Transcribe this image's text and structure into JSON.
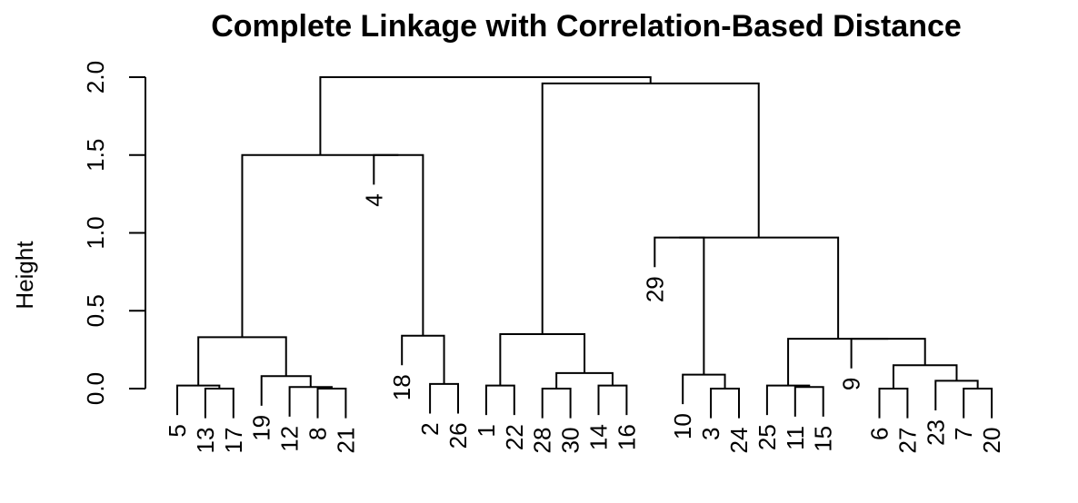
{
  "chart_data": {
    "type": "dendrogram",
    "title": "Complete Linkage with Correlation-Based Distance",
    "ylabel": "Height",
    "xlabel": "",
    "ylim": [
      0,
      2.0
    ],
    "yticks": [
      0.0,
      0.5,
      1.0,
      1.5,
      2.0
    ],
    "ytick_labels": [
      "0.0",
      "0.5",
      "1.0",
      "1.5",
      "2.0"
    ],
    "grid": false,
    "leaves": [
      "5",
      "13",
      "17",
      "19",
      "12",
      "8",
      "21",
      "4",
      "18",
      "2",
      "26",
      "1",
      "22",
      "28",
      "30",
      "14",
      "16",
      "29",
      "10",
      "3",
      "24",
      "25",
      "11",
      "15",
      "9",
      "6",
      "27",
      "23",
      "7",
      "20"
    ],
    "merges": [
      {
        "left": "13",
        "right": "17",
        "height": 0.0
      },
      {
        "left": "8",
        "right": "21",
        "height": 0.0
      },
      {
        "left": "2",
        "right": "26",
        "height": 0.03
      },
      {
        "left": "1",
        "right": "22",
        "height": 0.02
      },
      {
        "left": "28",
        "right": "30",
        "height": 0.0
      },
      {
        "left": "14",
        "right": "16",
        "height": 0.02
      },
      {
        "left": "3",
        "right": "24",
        "height": 0.0
      },
      {
        "left": "11",
        "right": "15",
        "height": 0.01
      },
      {
        "left": "7",
        "right": "20",
        "height": 0.0
      },
      {
        "left": "6",
        "right": "27",
        "height": 0.0
      },
      {
        "left": "5",
        "right": "13+17",
        "height": 0.02
      },
      {
        "left": "12",
        "right": "8+21",
        "height": 0.01
      },
      {
        "left": "19",
        "right": "12+8+21",
        "height": 0.08
      },
      {
        "left": "5+13+17",
        "right": "19+12+8+21",
        "height": 0.33
      },
      {
        "left": "18",
        "right": "2+26",
        "height": 0.34
      },
      {
        "left": "4",
        "right": "18+2+26",
        "height": 1.5
      },
      {
        "left": "28+30",
        "right": "14+16",
        "height": 0.1
      },
      {
        "left": "1+22",
        "right": "28+30+14+16",
        "height": 0.35
      },
      {
        "left": "10",
        "right": "3+24",
        "height": 0.09
      },
      {
        "left": "29",
        "right": "10+3+24",
        "height": 0.97
      },
      {
        "left": "25",
        "right": "11+15",
        "height": 0.02
      },
      {
        "left": "23",
        "right": "7+20",
        "height": 0.05
      },
      {
        "left": "6+27",
        "right": "23+7+20",
        "height": 0.15
      },
      {
        "left": "9",
        "right": "6+27+23+7+20",
        "height": 0.32
      },
      {
        "left": "25+11+15",
        "right": "9+6+27+23+7+20",
        "height": 0.32
      },
      {
        "left": "29+10+3+24",
        "right": "25+11+15+9+6+27+23+7+20",
        "height": 0.97
      },
      {
        "left": "1+22+28+30+14+16",
        "right": "29+10+3+24+25+11+15+9+6+27+23+7+20",
        "height": 1.96
      },
      {
        "left": "5+13+17+19+12+8+21",
        "right": "4+18+2+26",
        "height": 1.5
      },
      {
        "left": "left-cluster",
        "right": "right-cluster",
        "height": 2.0
      }
    ]
  }
}
